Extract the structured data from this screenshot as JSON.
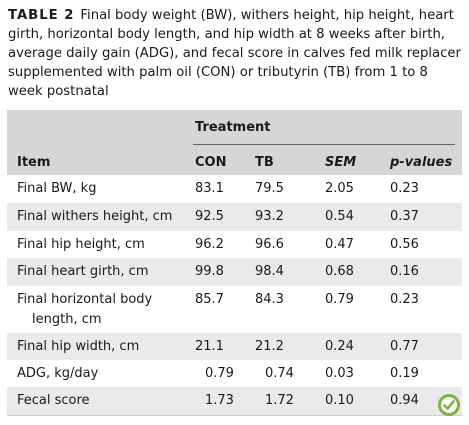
{
  "caption": {
    "label": "TABLE 2",
    "text": "Final body weight (BW), withers height, hip height, heart girth, horizontal body length, and hip width at 8 weeks after birth, average daily gain (ADG), and fecal score in calves fed milk replacer supplemented with palm oil (CON) or tributyrin (TB) from 1 to 8 week postnatal"
  },
  "header": {
    "treatment": "Treatment",
    "item": "Item",
    "con": "CON",
    "tb": "TB",
    "sem": "SEM",
    "pvalues": "p-values"
  },
  "rows": [
    {
      "item": "Final BW, kg",
      "con": "83.1",
      "tb": "79.5",
      "sem": "2.05",
      "p": "0.23"
    },
    {
      "item": "Final withers height, cm",
      "con": "92.5",
      "tb": "93.2",
      "sem": "0.54",
      "p": "0.37"
    },
    {
      "item": "Final hip height, cm",
      "con": "96.2",
      "tb": "96.6",
      "sem": "0.47",
      "p": "0.56"
    },
    {
      "item": "Final heart girth, cm",
      "con": "99.8",
      "tb": "98.4",
      "sem": "0.68",
      "p": "0.16"
    },
    {
      "item": "Final horizontal body",
      "item2": "length, cm",
      "con": "85.7",
      "tb": "84.3",
      "sem": "0.79",
      "p": "0.23"
    },
    {
      "item": "Final hip width, cm",
      "con": "21.1",
      "tb": "21.2",
      "sem": "0.24",
      "p": "0.77"
    },
    {
      "item": "ADG, kg/day",
      "con": "0.79",
      "tb": "0.74",
      "sem": "0.03",
      "p": "0.19"
    },
    {
      "item": "Fecal score",
      "con": "1.73",
      "tb": "1.72",
      "sem": "0.10",
      "p": "0.94"
    }
  ],
  "logo_icon": "open-access-check-icon",
  "colors": {
    "header_bg": "#d5d6d7",
    "shade_bg": "#e9eaeb",
    "logo": "#7cb342"
  }
}
